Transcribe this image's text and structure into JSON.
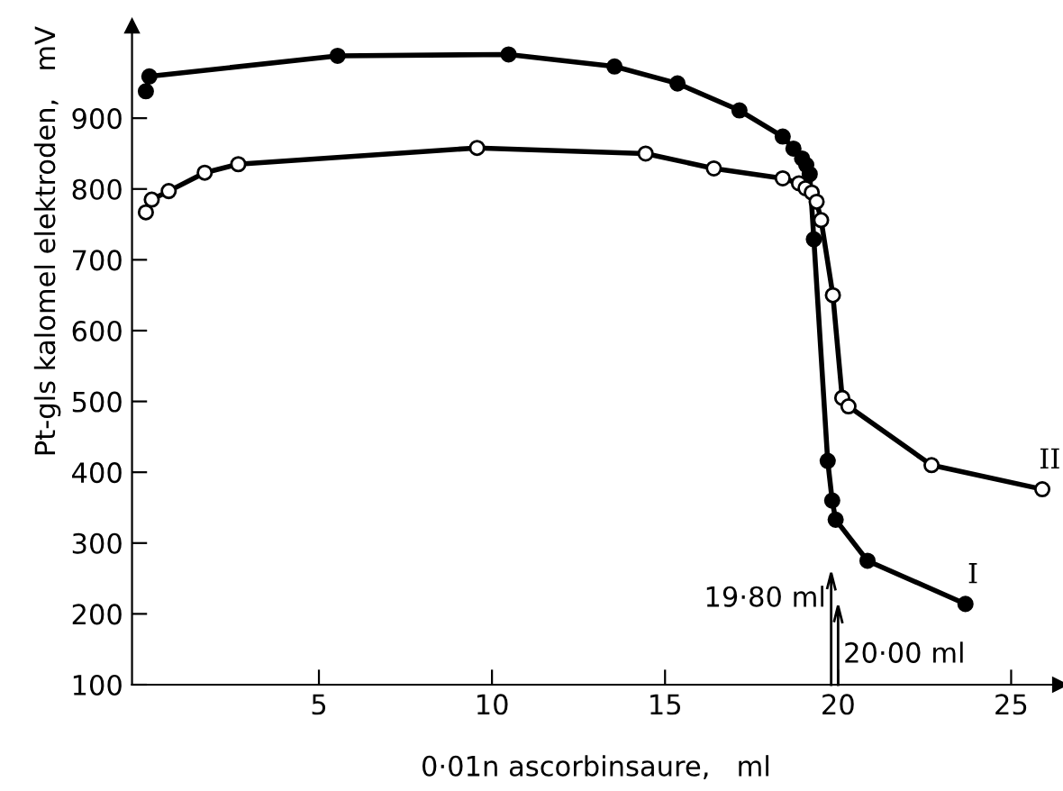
{
  "chart_data": {
    "type": "line",
    "xlabel": "0·01n ascorbinsaure,   ml",
    "ylabel": "Pt-gls kalomel elektroden,   mV",
    "xlim": [
      -0.4,
      26.4
    ],
    "ylim": [
      100,
      1030
    ],
    "xticks": [
      5,
      10,
      15,
      20,
      25
    ],
    "yticks": [
      100,
      200,
      300,
      400,
      500,
      600,
      700,
      800,
      900
    ],
    "grid": false,
    "legend": false,
    "marker": "circle",
    "line_style": "solid",
    "series": [
      {
        "name": "I",
        "color": "#000000",
        "x": [
          0,
          0.1,
          5.54,
          10.48,
          13.54,
          15.36,
          17.15,
          18.4,
          18.71,
          18.96,
          19.08,
          19.18,
          19.3,
          19.7,
          19.83,
          19.93,
          20.85,
          23.68
        ],
        "values": [
          938,
          959,
          988,
          990,
          973,
          949,
          911,
          874,
          857,
          843,
          834,
          821,
          729,
          416,
          360,
          333,
          275,
          214
        ]
      },
      {
        "name": "II",
        "color": "#000000",
        "x": [
          0,
          0.17,
          0.66,
          1.7,
          2.67,
          9.57,
          14.44,
          16.41,
          18.4,
          18.87,
          19.06,
          19.24,
          19.38,
          19.51,
          19.85,
          20.12,
          20.3,
          22.7,
          25.9
        ],
        "values": [
          767,
          785,
          797,
          823,
          835,
          858,
          850,
          829,
          815,
          808,
          801,
          795,
          782,
          756,
          650,
          505,
          493,
          410,
          376
        ]
      }
    ],
    "ref_lines": [
      {
        "axis": "x",
        "value": 19.8,
        "label": "19·80 ml"
      },
      {
        "axis": "x",
        "value": 20.0,
        "label": "20·00 ml"
      }
    ]
  }
}
